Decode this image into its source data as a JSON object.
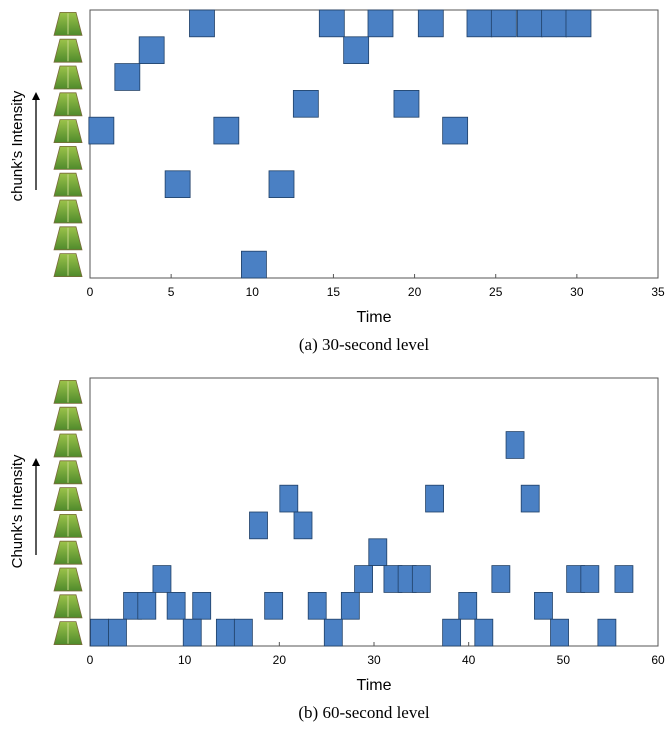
{
  "chart_data": [
    {
      "type": "scatter",
      "x_label": "Time",
      "y_label": "chunk’s Intensity",
      "caption": "(a) 30-second level",
      "color": "#4a80c4",
      "xlim": [
        0,
        35
      ],
      "xticks": [
        0,
        5,
        10,
        15,
        20,
        25,
        30,
        35
      ],
      "ylim": [
        -0.5,
        9.5
      ],
      "series": [
        {
          "x": [
            6.9,
            14.9,
            17.9,
            21.0,
            24.0,
            25.5,
            27.1,
            28.6,
            30.1,
            3.8,
            16.4,
            2.3,
            13.3,
            19.5,
            0.7,
            8.4,
            22.5,
            5.4,
            11.8,
            10.1
          ],
          "values": [
            9,
            9,
            9,
            9,
            9,
            9,
            9,
            9,
            9,
            8,
            8,
            7,
            6,
            6,
            5,
            5,
            5,
            3,
            3,
            0
          ]
        }
      ]
    },
    {
      "type": "scatter",
      "x_label": "Time",
      "y_label": "Chunk's Intensity",
      "caption": "(b) 60-second level",
      "color": "#4a80c4",
      "xlim": [
        0,
        60
      ],
      "xticks": [
        0,
        10,
        20,
        30,
        40,
        50,
        60
      ],
      "ylim": [
        -0.5,
        9.5
      ],
      "series": [
        {
          "x": [
            44.9,
            21.0,
            36.4,
            46.5,
            17.8,
            22.5,
            30.4,
            7.6,
            28.9,
            32.0,
            33.5,
            35.0,
            43.4,
            51.3,
            52.8,
            56.4,
            4.5,
            6.0,
            9.1,
            11.8,
            19.4,
            24.0,
            27.5,
            39.9,
            47.9,
            1.0,
            2.9,
            10.8,
            14.3,
            16.2,
            25.7,
            38.2,
            41.6,
            49.6,
            54.6
          ],
          "values": [
            7,
            5,
            5,
            5,
            4,
            4,
            3,
            2,
            2,
            2,
            2,
            2,
            2,
            2,
            2,
            2,
            1,
            1,
            1,
            1,
            1,
            1,
            1,
            1,
            1,
            0,
            0,
            0,
            0,
            0,
            0,
            0,
            0,
            0,
            0
          ]
        }
      ]
    }
  ]
}
